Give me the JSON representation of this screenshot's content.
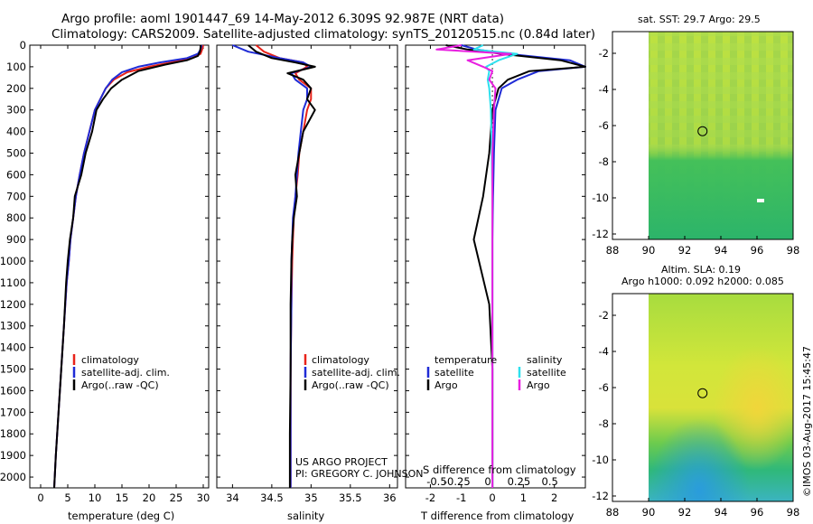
{
  "header": {
    "line1": "Argo profile: aoml 1901447_69 14-May-2012 6.309S 92.987E (NRT data)",
    "line2": "Climatology: CARS2009. Satellite-adjusted climatology: synTS_20120515.nc (0.84d later)"
  },
  "colors": {
    "climatology": "#e8231a",
    "satellite": "#1f2bd6",
    "argo": "#000000",
    "salinity_sat": "#2ee0ee",
    "salinity_argo": "#e81fe0"
  },
  "temperature_panel": {
    "xlabel": "temperature (deg C)",
    "legend": [
      "climatology",
      "satellite-adj. clim.",
      "Argo(..raw -QC)"
    ]
  },
  "salinity_panel": {
    "xlabel": "salinity",
    "legend": [
      "climatology",
      "satellite-adj. clim.",
      "Argo(..raw -QC)"
    ],
    "credit1": "US ARGO PROJECT",
    "credit2": "PI: GREGORY C. JOHNSON"
  },
  "difference_panel": {
    "top_label": "S difference from climatology",
    "xlabel": "T difference from climatology",
    "legend_temp_title": "temperature",
    "legend_sal_title": "salinity",
    "legend_entries": [
      "satellite",
      "Argo",
      "satellite",
      "Argo"
    ]
  },
  "sst_map": {
    "title": "sat. SST: 29.7 Argo: 29.5",
    "xticks": [
      "88",
      "90",
      "92",
      "94",
      "96",
      "98"
    ],
    "yticks": [
      "-2",
      "-4",
      "-6",
      "-8",
      "-10",
      "-12"
    ]
  },
  "sla_map": {
    "title1": "Altim. SLA: 0.19",
    "title2": "Argo h1000: 0.092 h2000: 0.085",
    "xticks": [
      "88",
      "90",
      "92",
      "94",
      "96",
      "98"
    ],
    "yticks": [
      "-2",
      "-4",
      "-6",
      "-8",
      "-10",
      "-12"
    ]
  },
  "side_stamp": "©IMOS 03-Aug-2017 15:45:47",
  "chart_data": [
    {
      "type": "line",
      "title": "temperature",
      "xlabel": "temperature (deg C)",
      "ylabel": "",
      "xlim": [
        -2,
        31
      ],
      "ylim": [
        2050,
        0
      ],
      "xticks": [
        0,
        5,
        10,
        15,
        20,
        25,
        30
      ],
      "yticks": [
        0,
        100,
        200,
        300,
        400,
        500,
        600,
        700,
        800,
        900,
        1000,
        1100,
        1200,
        1300,
        1400,
        1500,
        1600,
        1700,
        1800,
        1900,
        2000
      ],
      "series": [
        {
          "name": "climatology",
          "x": [
            30,
            29.8,
            29.5,
            28,
            24,
            20,
            16,
            13.5,
            12,
            11,
            10,
            9,
            8,
            7.2,
            6.5,
            6,
            5.5,
            5.2,
            4.8,
            4.3,
            3.8,
            3.3,
            2.8,
            2.5
          ],
          "y": [
            0,
            20,
            40,
            60,
            80,
            100,
            125,
            160,
            200,
            250,
            300,
            400,
            500,
            600,
            700,
            800,
            900,
            1000,
            1100,
            1300,
            1500,
            1700,
            1900,
            2050
          ]
        },
        {
          "name": "satellite-adj. clim.",
          "x": [
            29.7,
            29.5,
            29,
            27,
            22,
            18,
            15,
            13.2,
            12,
            11,
            10,
            9,
            8,
            7.2,
            6.5,
            6,
            5.5,
            5.2,
            4.8,
            4.3,
            3.8,
            3.3,
            2.8,
            2.5
          ],
          "y": [
            0,
            20,
            40,
            60,
            80,
            100,
            125,
            160,
            200,
            250,
            300,
            400,
            500,
            600,
            700,
            800,
            900,
            1000,
            1100,
            1300,
            1500,
            1700,
            1900,
            2050
          ]
        },
        {
          "name": "Argo(..raw -QC)",
          "x": [
            29.5,
            29.5,
            29.4,
            29,
            27,
            23,
            18,
            15,
            13,
            11.5,
            10.3,
            9.5,
            8.3,
            7.5,
            6.3,
            6,
            5.4,
            5.0,
            4.7,
            4.3,
            3.8,
            3.3,
            2.8,
            2.5
          ],
          "y": [
            0,
            10,
            30,
            50,
            70,
            90,
            120,
            160,
            200,
            250,
            300,
            400,
            500,
            600,
            700,
            800,
            900,
            1000,
            1100,
            1300,
            1500,
            1700,
            1900,
            2050
          ]
        }
      ]
    },
    {
      "type": "line",
      "title": "salinity",
      "xlabel": "salinity",
      "xlim": [
        33.8,
        36.1
      ],
      "ylim": [
        2050,
        0
      ],
      "xticks": [
        34,
        34.5,
        35,
        35.5,
        36
      ],
      "series": [
        {
          "name": "climatology",
          "x": [
            34.3,
            34.4,
            34.6,
            34.9,
            34.95,
            34.8,
            34.85,
            35.0,
            35.0,
            34.95,
            34.9,
            34.85,
            34.83,
            34.8,
            34.78,
            34.77,
            34.76,
            34.75,
            34.74,
            34.74,
            34.74
          ],
          "y": [
            0,
            30,
            60,
            80,
            100,
            130,
            160,
            200,
            250,
            300,
            400,
            500,
            600,
            700,
            800,
            900,
            1000,
            1200,
            1500,
            1800,
            2050
          ]
        },
        {
          "name": "satellite-adj. clim.",
          "x": [
            34.0,
            34.2,
            34.6,
            34.9,
            35.0,
            34.75,
            34.8,
            34.95,
            34.95,
            34.9,
            34.87,
            34.84,
            34.82,
            34.8,
            34.77,
            34.76,
            34.75,
            34.75,
            34.74,
            34.74,
            34.74
          ],
          "y": [
            0,
            30,
            60,
            80,
            100,
            130,
            160,
            200,
            250,
            300,
            400,
            500,
            600,
            700,
            800,
            900,
            1000,
            1200,
            1500,
            1800,
            2050
          ]
        },
        {
          "name": "Argo(..raw -QC)",
          "x": [
            34.2,
            34.3,
            34.5,
            34.8,
            35.05,
            34.7,
            34.9,
            35.0,
            34.95,
            35.05,
            34.9,
            34.85,
            34.8,
            34.82,
            34.78,
            34.76,
            34.75,
            34.74,
            34.74,
            34.73,
            34.73
          ],
          "y": [
            0,
            30,
            60,
            80,
            100,
            130,
            160,
            200,
            250,
            300,
            400,
            500,
            600,
            700,
            800,
            900,
            1000,
            1200,
            1500,
            1800,
            2050
          ]
        }
      ]
    },
    {
      "type": "line",
      "title": "difference from climatology",
      "xlabel": "T difference from climatology",
      "xlim": [
        -2.8,
        3
      ],
      "ylim": [
        2050,
        0
      ],
      "xticks": [
        -2,
        -1,
        0,
        1,
        2
      ],
      "top_xlabel": "S difference from climatology",
      "top_xticks": [
        "-0.5",
        "-0.25",
        "0",
        "0.25",
        "0.5"
      ],
      "series": [
        {
          "name": "temperature satellite",
          "x": [
            -1.0,
            -0.5,
            0.5,
            2.5,
            3.0,
            1.5,
            0.8,
            0.3,
            0.1,
            0.05,
            0.02,
            0.0,
            0.0,
            0.0,
            0.0,
            0.0
          ],
          "y": [
            0,
            20,
            40,
            70,
            100,
            120,
            160,
            200,
            300,
            500,
            700,
            900,
            1200,
            1500,
            1800,
            2050
          ]
        },
        {
          "name": "temperature Argo",
          "x": [
            -1.5,
            -0.8,
            0.3,
            2.2,
            3.0,
            1.2,
            0.5,
            0.2,
            0.0,
            -0.1,
            -0.3,
            -0.6,
            -0.1,
            0.0,
            0.0,
            0.0
          ],
          "y": [
            0,
            20,
            40,
            70,
            100,
            120,
            160,
            200,
            300,
            500,
            700,
            900,
            1200,
            1500,
            1800,
            2050
          ]
        },
        {
          "name": "salinity satellite",
          "x": [
            -0.3,
            -0.6,
            0.8,
            0.2,
            -0.2,
            -0.1,
            -0.15,
            -0.1,
            -0.05,
            -0.02,
            0.0,
            0.0,
            0.0,
            0.0,
            0.0,
            0.0
          ],
          "y": [
            0,
            20,
            40,
            70,
            100,
            120,
            160,
            200,
            300,
            500,
            700,
            900,
            1200,
            1500,
            1800,
            2050
          ]
        },
        {
          "name": "salinity Argo",
          "x": [
            -1.0,
            -1.8,
            0.6,
            -0.8,
            -0.3,
            0.0,
            -0.1,
            0.1,
            0.05,
            0.0,
            0.0,
            0.0,
            0.0,
            0.0,
            0.0,
            0.0
          ],
          "y": [
            0,
            20,
            40,
            70,
            100,
            120,
            160,
            200,
            300,
            500,
            700,
            900,
            1200,
            1500,
            1800,
            2050
          ]
        }
      ]
    },
    {
      "type": "heatmap",
      "title": "sat. SST: 29.7 Argo: 29.5",
      "xlim": [
        88,
        98
      ],
      "ylim": [
        -12.3,
        -0.8
      ],
      "marker": {
        "lon": 92.987,
        "lat": -6.309
      }
    },
    {
      "type": "heatmap",
      "title": "Altim. SLA: 0.19",
      "xlim": [
        88,
        98
      ],
      "ylim": [
        -12.3,
        -0.8
      ],
      "marker": {
        "lon": 92.987,
        "lat": -6.309
      }
    }
  ]
}
